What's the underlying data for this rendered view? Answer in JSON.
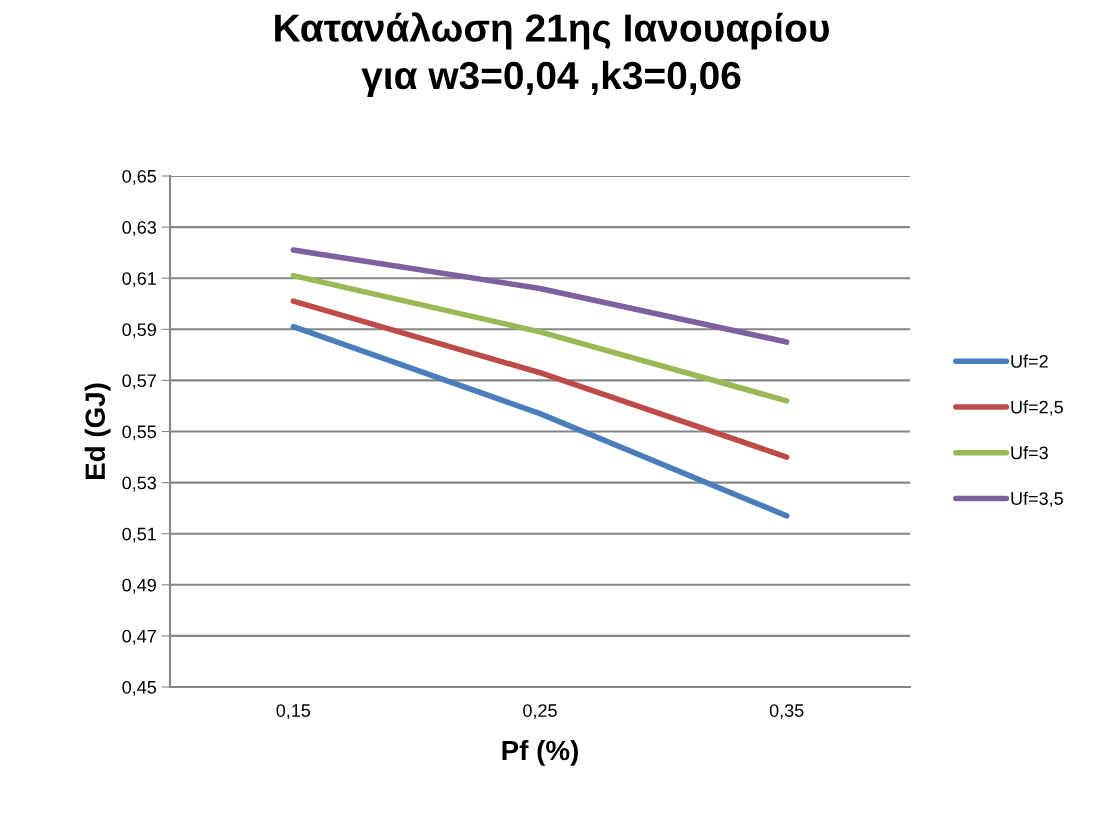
{
  "chart_data": {
    "type": "line",
    "title": "Κατανάλωση 21ης Ιανουαρίου\nγια w3=0,04 ,k3=0,06",
    "xlabel": "Pf (%)",
    "ylabel": "Ed (GJ)",
    "categories": [
      "0,15",
      "0,25",
      "0,35"
    ],
    "series": [
      {
        "name": "Uf=2",
        "color": "#4a7ebb",
        "values": [
          0.591,
          0.557,
          0.517
        ]
      },
      {
        "name": "Uf=2,5",
        "color": "#be4b48",
        "values": [
          0.601,
          0.573,
          0.54
        ]
      },
      {
        "name": "Uf=3",
        "color": "#98b954",
        "values": [
          0.611,
          0.589,
          0.562
        ]
      },
      {
        "name": "Uf=3,5",
        "color": "#7d60a0",
        "values": [
          0.621,
          0.606,
          0.585
        ]
      }
    ],
    "ylim": [
      0.45,
      0.65
    ],
    "yticks": [
      {
        "value": 0.45,
        "label": "0,45"
      },
      {
        "value": 0.47,
        "label": "0,47"
      },
      {
        "value": 0.49,
        "label": "0,49"
      },
      {
        "value": 0.51,
        "label": "0,51"
      },
      {
        "value": 0.53,
        "label": "0,53"
      },
      {
        "value": 0.55,
        "label": "0,55"
      },
      {
        "value": 0.57,
        "label": "0,57"
      },
      {
        "value": 0.59,
        "label": "0,59"
      },
      {
        "value": 0.61,
        "label": "0,61"
      },
      {
        "value": 0.63,
        "label": "0,63"
      },
      {
        "value": 0.65,
        "label": "0,65"
      }
    ],
    "grid": "y",
    "legend": "right",
    "marker": "none",
    "line_style": "solid"
  }
}
